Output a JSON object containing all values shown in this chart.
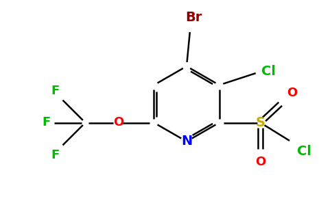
{
  "background_color": "#ffffff",
  "bond_color": "#000000",
  "bond_width": 1.8,
  "figsize": [
    4.84,
    3.0
  ],
  "dpi": 100,
  "colors": {
    "C": "#000000",
    "N": "#0000ff",
    "Br": "#8b0000",
    "Cl": "#00bb00",
    "S": "#ccaa00",
    "O": "#ff0000",
    "F": "#00bb00"
  }
}
